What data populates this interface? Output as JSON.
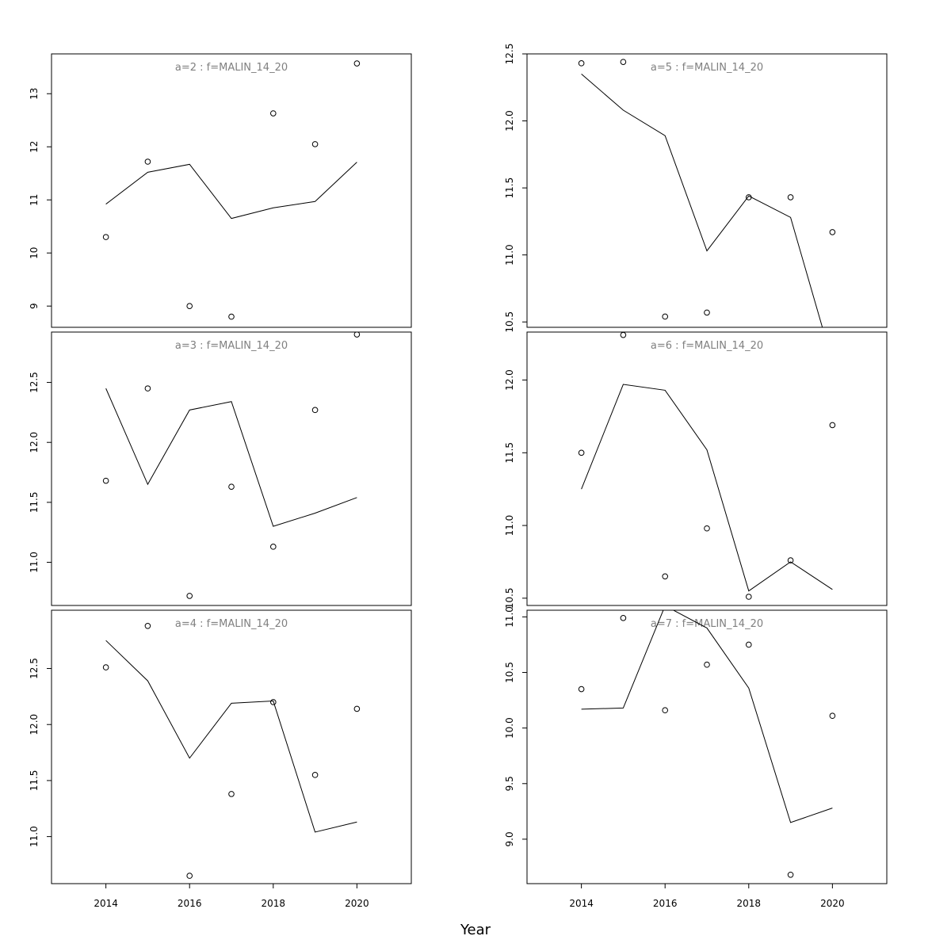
{
  "figure": {
    "xlabel": "Year"
  },
  "colors": {
    "title": "#808080",
    "ink": "#000000"
  },
  "chart_data": [
    {
      "type": "line",
      "title": "a=2 : f=MALIN_14_20",
      "x": [
        2014,
        2015,
        2016,
        2017,
        2018,
        2019,
        2020
      ],
      "points": [
        10.3,
        11.72,
        9.0,
        8.8,
        12.63,
        12.05,
        13.57
      ],
      "line": [
        10.92,
        11.52,
        11.67,
        10.65,
        10.85,
        10.97,
        11.71
      ],
      "xlim": [
        2012.7,
        2021.3
      ],
      "ylim": [
        8.6,
        13.75
      ],
      "yticks": [
        9,
        10,
        11,
        12,
        13
      ],
      "ytick_labels": [
        "9",
        "10",
        "11",
        "12",
        "13"
      ],
      "xticks": [
        2014,
        2016,
        2018,
        2020
      ],
      "xtick_labels": [
        "2014",
        "2016",
        "2018",
        "2020"
      ],
      "show_xaxis": false
    },
    {
      "type": "line",
      "title": "a=5 : f=MALIN_14_20",
      "x": [
        2014,
        2015,
        2016,
        2017,
        2018,
        2019,
        2020
      ],
      "points": [
        12.43,
        12.44,
        10.54,
        10.57,
        11.43,
        11.43,
        11.17
      ],
      "line": [
        12.35,
        12.08,
        11.89,
        11.03,
        11.44,
        11.28,
        10.2
      ],
      "xlim": [
        2012.7,
        2021.3
      ],
      "ylim": [
        10.46,
        12.5
      ],
      "yticks": [
        10.5,
        11.0,
        11.5,
        12.0,
        12.5
      ],
      "ytick_labels": [
        "10.5",
        "11.0",
        "11.5",
        "12.0",
        "12.5"
      ],
      "xticks": [
        2014,
        2016,
        2018,
        2020
      ],
      "xtick_labels": [
        "2014",
        "2016",
        "2018",
        "2020"
      ],
      "show_xaxis": false
    },
    {
      "type": "line",
      "title": "a=3 : f=MALIN_14_20",
      "x": [
        2014,
        2015,
        2016,
        2017,
        2018,
        2019,
        2020
      ],
      "points": [
        11.68,
        12.45,
        10.72,
        11.63,
        11.13,
        12.27,
        12.9
      ],
      "line": [
        12.45,
        11.65,
        12.27,
        12.34,
        11.3,
        11.41,
        11.54
      ],
      "xlim": [
        2012.7,
        2021.3
      ],
      "ylim": [
        10.64,
        12.92
      ],
      "yticks": [
        11.0,
        11.5,
        12.0,
        12.5
      ],
      "ytick_labels": [
        "11.0",
        "11.5",
        "12.0",
        "12.5"
      ],
      "xticks": [
        2014,
        2016,
        2018,
        2020
      ],
      "xtick_labels": [
        "2014",
        "2016",
        "2018",
        "2020"
      ],
      "show_xaxis": false
    },
    {
      "type": "line",
      "title": "a=6 : f=MALIN_14_20",
      "x": [
        2014,
        2015,
        2016,
        2017,
        2018,
        2019,
        2020
      ],
      "points": [
        11.5,
        12.31,
        10.65,
        10.98,
        10.51,
        10.76,
        11.69
      ],
      "line": [
        11.25,
        11.97,
        11.93,
        11.52,
        10.55,
        10.75,
        10.56
      ],
      "xlim": [
        2012.7,
        2021.3
      ],
      "ylim": [
        10.45,
        12.33
      ],
      "yticks": [
        10.5,
        11.0,
        11.5,
        12.0
      ],
      "ytick_labels": [
        "10.5",
        "11.0",
        "11.5",
        "12.0"
      ],
      "xticks": [
        2014,
        2016,
        2018,
        2020
      ],
      "xtick_labels": [
        "2014",
        "2016",
        "2018",
        "2020"
      ],
      "show_xaxis": false
    },
    {
      "type": "line",
      "title": "a=4 : f=MALIN_14_20",
      "x": [
        2014,
        2015,
        2016,
        2017,
        2018,
        2019,
        2020
      ],
      "points": [
        12.51,
        12.88,
        10.65,
        11.38,
        12.2,
        11.55,
        12.14
      ],
      "line": [
        12.75,
        12.39,
        11.7,
        12.19,
        12.21,
        11.04,
        11.13
      ],
      "xlim": [
        2012.7,
        2021.3
      ],
      "ylim": [
        10.58,
        13.02
      ],
      "yticks": [
        11.0,
        11.5,
        12.0,
        12.5
      ],
      "ytick_labels": [
        "11.0",
        "11.5",
        "12.0",
        "12.5"
      ],
      "xticks": [
        2014,
        2016,
        2018,
        2020
      ],
      "xtick_labels": [
        "2014",
        "2016",
        "2018",
        "2020"
      ],
      "show_xaxis": true
    },
    {
      "type": "line",
      "title": "a=7 : f=MALIN_14_20",
      "x": [
        2014,
        2015,
        2016,
        2017,
        2018,
        2019,
        2020
      ],
      "points": [
        10.35,
        10.99,
        10.16,
        10.57,
        10.75,
        8.68,
        10.11
      ],
      "line": [
        10.17,
        10.18,
        11.1,
        10.9,
        10.36,
        9.15,
        9.28
      ],
      "xlim": [
        2012.7,
        2021.3
      ],
      "ylim": [
        8.6,
        11.06
      ],
      "yticks": [
        9.0,
        9.5,
        10.0,
        10.5,
        11.0
      ],
      "ytick_labels": [
        "9.0",
        "9.5",
        "10.0",
        "10.5",
        "11.0"
      ],
      "xticks": [
        2014,
        2016,
        2018,
        2020
      ],
      "xtick_labels": [
        "2014",
        "2016",
        "2018",
        "2020"
      ],
      "show_xaxis": true
    }
  ]
}
